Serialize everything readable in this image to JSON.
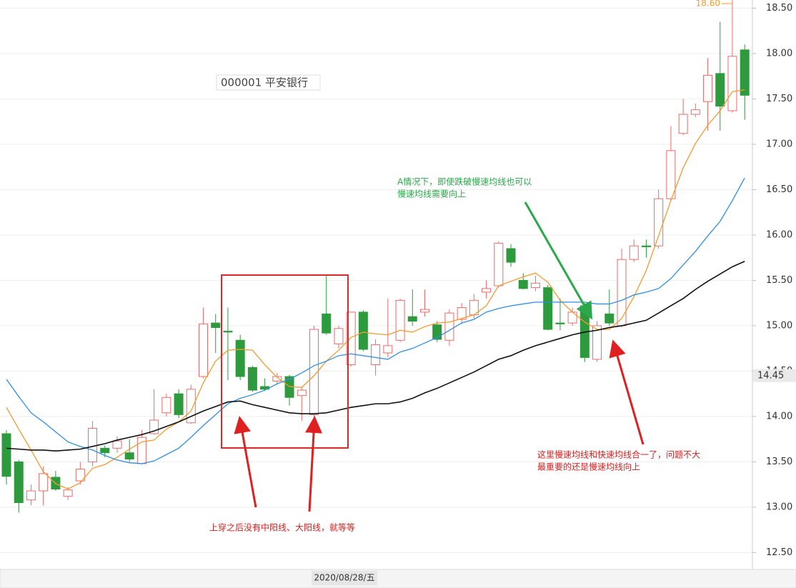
{
  "chart_data": {
    "type": "candlestick",
    "title": "000001 平安银行",
    "ohlc": [
      [
        13.81,
        13.85,
        13.25,
        13.34
      ],
      [
        13.5,
        13.52,
        12.94,
        13.05
      ],
      [
        13.08,
        13.25,
        13.02,
        13.18
      ],
      [
        13.18,
        13.45,
        13.02,
        13.37
      ],
      [
        13.33,
        13.4,
        13.18,
        13.2
      ],
      [
        13.12,
        13.22,
        13.08,
        13.19
      ],
      [
        13.29,
        13.5,
        13.25,
        13.42
      ],
      [
        13.5,
        13.95,
        13.45,
        13.87
      ],
      [
        13.65,
        13.68,
        13.55,
        13.6
      ],
      [
        13.65,
        13.78,
        13.6,
        13.73
      ],
      [
        13.6,
        13.75,
        13.5,
        13.53
      ],
      [
        13.48,
        13.85,
        13.47,
        13.77
      ],
      [
        13.81,
        14.3,
        13.8,
        13.96
      ],
      [
        14.04,
        14.25,
        14.0,
        14.21
      ],
      [
        14.25,
        14.3,
        13.98,
        14.02
      ],
      [
        13.93,
        14.35,
        13.92,
        14.3
      ],
      [
        14.44,
        15.2,
        14.42,
        15.02
      ],
      [
        15.03,
        15.13,
        14.7,
        14.98
      ],
      [
        14.94,
        15.2,
        14.4,
        14.93
      ],
      [
        14.84,
        14.9,
        14.4,
        14.44
      ],
      [
        14.54,
        14.56,
        14.27,
        14.29
      ],
      [
        14.33,
        14.42,
        14.28,
        14.3
      ],
      [
        14.39,
        14.48,
        14.35,
        14.44
      ],
      [
        14.44,
        14.46,
        14.12,
        14.21
      ],
      [
        14.23,
        14.32,
        13.95,
        14.29
      ],
      [
        14.02,
        15.0,
        13.95,
        14.96
      ],
      [
        15.13,
        15.55,
        14.9,
        14.92
      ],
      [
        14.8,
        15.0,
        14.75,
        14.97
      ],
      [
        14.57,
        15.15,
        14.55,
        15.15
      ],
      [
        15.15,
        15.17,
        14.72,
        14.74
      ],
      [
        14.57,
        14.85,
        14.45,
        14.79
      ],
      [
        14.7,
        15.3,
        14.65,
        14.78
      ],
      [
        14.84,
        15.3,
        14.82,
        15.28
      ],
      [
        15.1,
        15.4,
        15.0,
        15.05
      ],
      [
        15.15,
        15.4,
        15.1,
        15.18
      ],
      [
        15.01,
        15.05,
        14.82,
        14.85
      ],
      [
        14.84,
        15.18,
        14.78,
        15.14
      ],
      [
        15.07,
        15.25,
        15.02,
        15.2
      ],
      [
        15.12,
        15.35,
        15.08,
        15.28
      ],
      [
        15.37,
        15.5,
        15.3,
        15.41
      ],
      [
        15.44,
        15.93,
        15.42,
        15.91
      ],
      [
        15.85,
        15.9,
        15.65,
        15.7
      ],
      [
        15.5,
        15.58,
        15.4,
        15.41
      ],
      [
        15.42,
        15.55,
        15.38,
        15.47
      ],
      [
        15.42,
        15.45,
        14.95,
        14.96
      ],
      [
        15.03,
        15.3,
        14.95,
        15.02
      ],
      [
        15.03,
        15.2,
        15.0,
        15.15
      ],
      [
        15.22,
        15.25,
        14.6,
        14.65
      ],
      [
        14.63,
        15.05,
        14.6,
        15.0
      ],
      [
        15.13,
        15.4,
        15.0,
        15.03
      ],
      [
        15.0,
        15.85,
        14.98,
        15.73
      ],
      [
        15.73,
        15.95,
        15.7,
        15.88
      ],
      [
        15.88,
        15.95,
        15.75,
        15.87
      ],
      [
        15.88,
        16.5,
        15.85,
        16.4
      ],
      [
        16.4,
        17.2,
        16.38,
        16.93
      ],
      [
        17.12,
        17.5,
        17.1,
        17.33
      ],
      [
        17.33,
        17.45,
        17.3,
        17.38
      ],
      [
        17.47,
        17.95,
        17.15,
        17.76
      ],
      [
        17.78,
        18.35,
        17.15,
        17.42
      ],
      [
        17.37,
        18.6,
        17.35,
        17.97
      ],
      [
        18.04,
        18.1,
        17.27,
        17.54
      ]
    ],
    "up_color": "#ee6a6a",
    "down_color": "#2e9a3e",
    "lines": [
      {
        "color": "#f39a2e",
        "values": [
          14.1,
          13.86,
          13.63,
          13.39,
          13.26,
          13.2,
          13.27,
          13.43,
          13.47,
          13.55,
          13.64,
          13.72,
          13.74,
          13.86,
          13.94,
          14.06,
          14.37,
          14.61,
          14.73,
          14.74,
          14.73,
          14.57,
          14.43,
          14.33,
          14.32,
          14.45,
          14.61,
          14.73,
          14.87,
          14.93,
          14.91,
          14.9,
          14.95,
          14.93,
          14.99,
          15.03,
          15.04,
          15.08,
          15.12,
          15.22,
          15.44,
          15.49,
          15.54,
          15.58,
          15.48,
          15.28,
          15.15,
          15.04,
          14.96,
          14.96,
          15.08,
          15.32,
          15.61,
          15.99,
          16.38,
          16.74,
          17.01,
          17.21,
          17.37,
          17.58,
          17.6
        ]
      },
      {
        "color": "#2f8fe0",
        "values": [
          14.41,
          14.22,
          14.04,
          13.94,
          13.83,
          13.72,
          13.67,
          13.63,
          13.57,
          13.52,
          13.49,
          13.48,
          13.51,
          13.58,
          13.65,
          13.77,
          13.9,
          14.02,
          14.14,
          14.2,
          14.24,
          14.29,
          14.36,
          14.41,
          14.48,
          14.56,
          14.61,
          14.67,
          14.69,
          14.67,
          14.65,
          14.63,
          14.71,
          14.75,
          14.81,
          14.87,
          14.95,
          15.03,
          15.07,
          15.15,
          15.19,
          15.22,
          15.24,
          15.26,
          15.26,
          15.26,
          15.26,
          15.26,
          15.24,
          15.24,
          15.28,
          15.34,
          15.37,
          15.41,
          15.52,
          15.67,
          15.82,
          15.99,
          16.15,
          16.38,
          16.63
        ]
      },
      {
        "color": "#111111",
        "values": [
          13.65,
          13.64,
          13.63,
          13.63,
          13.62,
          13.63,
          13.64,
          13.67,
          13.7,
          13.74,
          13.77,
          13.8,
          13.84,
          13.89,
          13.94,
          14.0,
          14.06,
          14.11,
          14.16,
          14.17,
          14.13,
          14.1,
          14.07,
          14.04,
          14.03,
          14.03,
          14.04,
          14.07,
          14.1,
          14.12,
          14.14,
          14.14,
          14.16,
          14.2,
          14.26,
          14.31,
          14.37,
          14.43,
          14.49,
          14.56,
          14.63,
          14.67,
          14.73,
          14.78,
          14.82,
          14.86,
          14.9,
          14.93,
          14.95,
          14.98,
          15.0,
          15.03,
          15.06,
          15.14,
          15.22,
          15.3,
          15.4,
          15.49,
          15.57,
          15.65,
          15.71
        ]
      }
    ],
    "ylim": [
      12.33,
      18.59
    ],
    "yticks": [
      {
        "value": 12.5,
        "label": "12.50"
      },
      {
        "value": 13,
        "label": "13.00"
      },
      {
        "value": 13.5,
        "label": "13.50"
      },
      {
        "value": 14,
        "label": "14.00"
      },
      {
        "value": 14.5,
        "label": "14.50"
      },
      {
        "value": 15,
        "label": "15.00"
      },
      {
        "value": 15.5,
        "label": "15.50"
      },
      {
        "value": 16,
        "label": "16.00"
      },
      {
        "value": 16.5,
        "label": "16.50"
      },
      {
        "value": 17,
        "label": "17.00"
      },
      {
        "value": 17.5,
        "label": "17.50"
      },
      {
        "value": 18,
        "label": "18.00"
      },
      {
        "value": 18.5,
        "label": "18.50"
      }
    ],
    "grid": true,
    "max_label": {
      "value": 18.6,
      "label": "18.60"
    },
    "price_label": {
      "value": 14.45,
      "label": "14.45"
    },
    "date_label": "2020/08/28/五",
    "annotations": [
      {
        "color": "#2aa84a",
        "lines": [
          "A情况下，即使跌破慢速均线也可以",
          "慢速均线需要向上"
        ]
      },
      {
        "color": "#d42020",
        "lines": [
          "这里慢速均线和快速均线合一了，问题不大",
          "最重要的还是慢速均线向上"
        ]
      },
      {
        "color": "#d42020",
        "lines": [
          "上穿之后没有中阳线、大阳线，就等等"
        ]
      }
    ]
  }
}
